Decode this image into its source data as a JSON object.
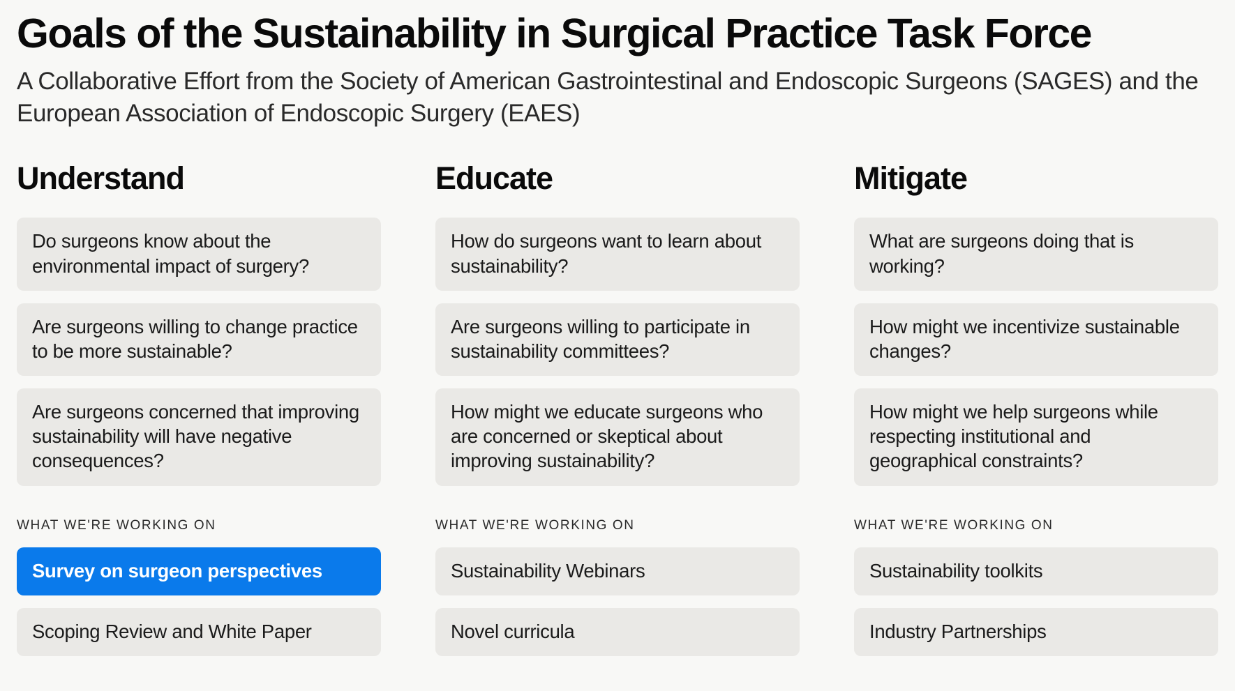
{
  "page": {
    "title": "Goals of the Sustainability in Surgical Practice Task Force",
    "subtitle": "A Collaborative Effort from the Society of American Gastrointestinal and Endoscopic Surgeons (SAGES) and the European Association of Endoscopic Surgery (EAES)"
  },
  "section_label": "WHAT WE'RE WORKING ON",
  "colors": {
    "background": "#f8f8f6",
    "card_bg": "#eae9e6",
    "highlight_bg": "#0a7aeb",
    "highlight_text": "#ffffff",
    "text_primary": "#0a0a0a",
    "text_body": "#1a1a1a"
  },
  "columns": [
    {
      "title": "Understand",
      "questions": [
        "Do surgeons know about the environmental impact of surgery?",
        "Are surgeons willing to change practice to be more sustainable?",
        "Are surgeons concerned that improving sustainability will have negative consequences?"
      ],
      "work_items": [
        {
          "text": "Survey on surgeon perspectives",
          "highlighted": true
        },
        {
          "text": "Scoping Review and White Paper",
          "highlighted": false
        }
      ]
    },
    {
      "title": "Educate",
      "questions": [
        "How do surgeons want to learn about sustainability?",
        "Are surgeons willing to participate in sustainability committees?",
        "How might we educate surgeons who are concerned or skeptical about improving sustainability?"
      ],
      "work_items": [
        {
          "text": "Sustainability Webinars",
          "highlighted": false
        },
        {
          "text": "Novel curricula",
          "highlighted": false
        }
      ]
    },
    {
      "title": "Mitigate",
      "questions": [
        "What are surgeons doing that is working?",
        "How might we incentivize sustainable changes?",
        "How might we help surgeons while respecting institutional and geographical constraints?"
      ],
      "work_items": [
        {
          "text": "Sustainability toolkits",
          "highlighted": false
        },
        {
          "text": "Industry Partnerships",
          "highlighted": false
        }
      ]
    }
  ]
}
